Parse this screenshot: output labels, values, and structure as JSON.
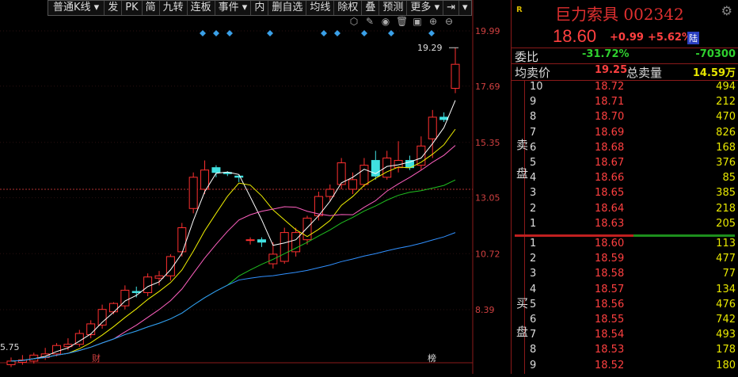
{
  "toolbar": {
    "chart_type": "普通K线",
    "buttons": [
      "发",
      "PK",
      "简",
      "九转",
      "连板",
      "事件",
      "内",
      "删自选",
      "均线",
      "除权",
      "叠",
      "预测",
      "更多"
    ]
  },
  "axis": {
    "labels": [
      "19.99",
      "17.69",
      "15.35",
      "13.05",
      "10.72",
      "8.39"
    ],
    "low_label": "5.75",
    "high_label": "19.29",
    "bottom_left": "财",
    "bottom_right": "榜"
  },
  "stock": {
    "name": "巨力索具",
    "code": "002342",
    "price": "18.60",
    "change": "+0.99",
    "change_pct": "+5.62%",
    "market_badge": "陆",
    "r_mark": "R"
  },
  "stats": {
    "weibi_label": "委比",
    "weibi_pct": "-31.72%",
    "weibi_val": "-70300",
    "avg_label": "均卖价",
    "avg_price": "19.25",
    "total_label": "总卖量",
    "total_val": "14.59万"
  },
  "sell_side_label": [
    "卖",
    "盘"
  ],
  "buy_side_label": [
    "买",
    "盘"
  ],
  "sell_orders": [
    {
      "level": "10",
      "price": "18.72",
      "vol": "494"
    },
    {
      "level": "9",
      "price": "18.71",
      "vol": "212"
    },
    {
      "level": "8",
      "price": "18.70",
      "vol": "470"
    },
    {
      "level": "7",
      "price": "18.69",
      "vol": "826"
    },
    {
      "level": "6",
      "price": "18.68",
      "vol": "168"
    },
    {
      "level": "5",
      "price": "18.67",
      "vol": "376"
    },
    {
      "level": "4",
      "price": "18.66",
      "vol": "85"
    },
    {
      "level": "3",
      "price": "18.65",
      "vol": "385"
    },
    {
      "level": "2",
      "price": "18.64",
      "vol": "218"
    },
    {
      "level": "1",
      "price": "18.63",
      "vol": "205"
    }
  ],
  "buy_orders": [
    {
      "level": "1",
      "price": "18.60",
      "vol": "113"
    },
    {
      "level": "2",
      "price": "18.59",
      "vol": "477"
    },
    {
      "level": "3",
      "price": "18.58",
      "vol": "77"
    },
    {
      "level": "4",
      "price": "18.57",
      "vol": "134"
    },
    {
      "level": "5",
      "price": "18.56",
      "vol": "476"
    },
    {
      "level": "6",
      "price": "18.55",
      "vol": "742"
    },
    {
      "level": "7",
      "price": "18.54",
      "vol": "493"
    },
    {
      "level": "8",
      "price": "18.53",
      "vol": "178"
    },
    {
      "level": "9",
      "price": "18.52",
      "vol": "180"
    }
  ],
  "candles": [
    [
      6.1,
      6.25,
      6.0,
      6.4
    ],
    [
      6.2,
      6.3,
      6.1,
      6.5
    ],
    [
      6.25,
      6.5,
      6.15,
      6.6
    ],
    [
      6.4,
      6.55,
      6.3,
      6.8
    ],
    [
      6.55,
      6.9,
      6.45,
      7.0
    ],
    [
      6.85,
      6.95,
      6.7,
      7.2
    ],
    [
      6.95,
      7.4,
      6.85,
      7.55
    ],
    [
      7.35,
      7.8,
      7.2,
      7.95
    ],
    [
      7.75,
      8.4,
      7.6,
      8.6
    ],
    [
      8.3,
      8.65,
      8.2,
      8.7
    ],
    [
      8.55,
      9.2,
      8.4,
      9.4
    ],
    [
      9.15,
      9.1,
      8.9,
      9.35
    ],
    [
      9.1,
      9.75,
      8.95,
      9.9
    ],
    [
      9.7,
      9.8,
      9.4,
      10.0
    ],
    [
      9.8,
      10.6,
      9.6,
      10.7
    ],
    [
      10.8,
      11.8,
      10.6,
      12.0
    ],
    [
      12.6,
      13.9,
      12.4,
      14.1
    ],
    [
      13.4,
      14.2,
      13.2,
      14.6
    ],
    [
      14.3,
      14.1,
      13.9,
      14.4
    ],
    [
      14.1,
      14.05,
      13.95,
      14.15
    ],
    [
      13.95,
      13.9,
      13.7,
      14.0
    ],
    [
      11.3,
      11.3,
      11.1,
      11.4
    ],
    [
      11.3,
      11.2,
      11.0,
      11.4
    ],
    [
      10.3,
      10.7,
      10.1,
      11.2
    ],
    [
      10.4,
      11.6,
      10.3,
      11.8
    ],
    [
      10.8,
      11.6,
      10.6,
      11.8
    ],
    [
      11.3,
      12.2,
      11.1,
      12.3
    ],
    [
      12.3,
      13.1,
      12.1,
      13.3
    ],
    [
      13.1,
      13.4,
      12.9,
      13.6
    ],
    [
      13.6,
      14.5,
      13.4,
      14.7
    ],
    [
      13.4,
      13.8,
      13.2,
      14.1
    ],
    [
      13.6,
      14.4,
      13.5,
      14.7
    ],
    [
      14.6,
      13.95,
      13.8,
      15.0
    ],
    [
      13.9,
      14.7,
      13.8,
      15.0
    ],
    [
      14.3,
      14.6,
      14.1,
      15.4
    ],
    [
      14.6,
      14.3,
      14.2,
      14.8
    ],
    [
      14.4,
      15.2,
      14.2,
      15.6
    ],
    [
      15.5,
      16.4,
      14.7,
      16.7
    ],
    [
      16.4,
      16.3,
      16.2,
      16.6
    ],
    [
      17.6,
      18.6,
      17.4,
      19.29
    ]
  ]
}
